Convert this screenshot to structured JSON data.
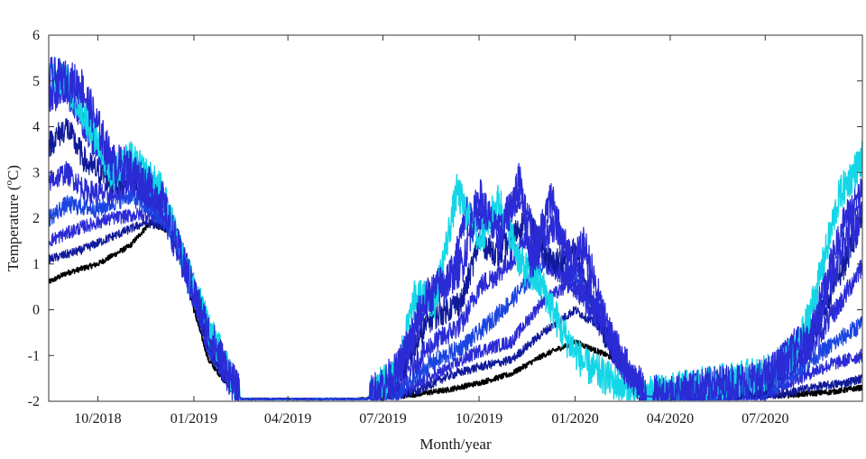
{
  "chart_data": {
    "type": "line",
    "title": "",
    "xlabel": "Month/year",
    "ylabel": "Temperature (°C)",
    "ylabel_main": "Temperature (",
    "ylabel_sup": "o",
    "ylabel_unit": "C)",
    "ylim": [
      -2,
      6
    ],
    "yticks": [
      -2,
      -1,
      0,
      1,
      2,
      3,
      4,
      5,
      6
    ],
    "xlim": [
      "2018-08-15",
      "2020-10-02"
    ],
    "xticks": [
      {
        "date": "2018-10-01",
        "label": "10/2018"
      },
      {
        "date": "2019-01-01",
        "label": "01/2019"
      },
      {
        "date": "2019-04-01",
        "label": "04/2019"
      },
      {
        "date": "2019-07-01",
        "label": "07/2019"
      },
      {
        "date": "2019-10-01",
        "label": "10/2019"
      },
      {
        "date": "2020-01-01",
        "label": "01/2020"
      },
      {
        "date": "2020-04-01",
        "label": "04/2020"
      },
      {
        "date": "2020-07-01",
        "label": "07/2020"
      }
    ],
    "grid": false,
    "legend": "none",
    "colors": {
      "black": "#000000",
      "cyan": "#14d6e6",
      "blue": "#2b2bd6",
      "blue_alt": "#1a45e0",
      "navy": "#101a9a",
      "white_band": "#ffffff"
    },
    "series": [
      {
        "color": "black",
        "noise": 0.06,
        "width": 1.6,
        "points": [
          [
            "2018-08-15",
            0.6
          ],
          [
            "2018-09-01",
            0.8
          ],
          [
            "2018-10-01",
            1.0
          ],
          [
            "2018-11-01",
            1.4
          ],
          [
            "2018-11-20",
            1.9
          ],
          [
            "2018-12-10",
            1.7
          ],
          [
            "2018-12-25",
            0.7
          ],
          [
            "2019-01-01",
            0.0
          ],
          [
            "2019-01-15",
            -1.1
          ],
          [
            "2019-02-01",
            -1.6
          ],
          [
            "2019-02-15",
            -1.95
          ],
          [
            "2019-06-01",
            -1.95
          ],
          [
            "2019-07-01",
            -1.92
          ],
          [
            "2019-08-01",
            -1.85
          ],
          [
            "2019-09-01",
            -1.75
          ],
          [
            "2019-10-01",
            -1.6
          ],
          [
            "2019-11-01",
            -1.4
          ],
          [
            "2019-12-01",
            -1.0
          ],
          [
            "2020-01-01",
            -0.7
          ],
          [
            "2020-02-01",
            -1.0
          ],
          [
            "2020-02-20",
            -1.3
          ],
          [
            "2020-03-01",
            -1.85
          ],
          [
            "2020-03-15",
            -1.9
          ],
          [
            "2020-07-01",
            -1.9
          ],
          [
            "2020-09-01",
            -1.8
          ],
          [
            "2020-10-02",
            -1.7
          ]
        ]
      },
      {
        "color": "navy",
        "noise": 0.1,
        "width": 1.2,
        "points": [
          [
            "2018-08-15",
            1.1
          ],
          [
            "2018-09-15",
            1.3
          ],
          [
            "2018-10-15",
            1.6
          ],
          [
            "2018-11-15",
            1.9
          ],
          [
            "2018-12-10",
            1.8
          ],
          [
            "2018-12-25",
            0.7
          ],
          [
            "2019-01-15",
            -1.0
          ],
          [
            "2019-02-15",
            -1.95
          ],
          [
            "2019-06-15",
            -1.95
          ],
          [
            "2019-08-01",
            -1.8
          ],
          [
            "2019-09-01",
            -1.45
          ],
          [
            "2019-10-01",
            -1.25
          ],
          [
            "2019-11-01",
            -1.1
          ],
          [
            "2019-12-01",
            -0.5
          ],
          [
            "2020-01-01",
            0.0
          ],
          [
            "2020-02-01",
            -0.5
          ],
          [
            "2020-02-20",
            -1.4
          ],
          [
            "2020-03-10",
            -1.9
          ],
          [
            "2020-07-15",
            -1.85
          ],
          [
            "2020-08-15",
            -1.7
          ],
          [
            "2020-09-15",
            -1.6
          ],
          [
            "2020-10-02",
            -1.5
          ]
        ]
      },
      {
        "color": "blue",
        "noise": 0.15,
        "width": 1.2,
        "points": [
          [
            "2018-08-15",
            1.5
          ],
          [
            "2018-09-15",
            1.8
          ],
          [
            "2018-10-15",
            2.0
          ],
          [
            "2018-11-15",
            2.1
          ],
          [
            "2018-12-10",
            1.9
          ],
          [
            "2018-12-25",
            0.8
          ],
          [
            "2019-01-15",
            -0.9
          ],
          [
            "2019-02-15",
            -1.95
          ],
          [
            "2019-06-15",
            -1.95
          ],
          [
            "2019-07-15",
            -1.85
          ],
          [
            "2019-08-15",
            -1.5
          ],
          [
            "2019-09-15",
            -1.1
          ],
          [
            "2019-10-01",
            -0.9
          ],
          [
            "2019-11-01",
            -0.7
          ],
          [
            "2019-12-01",
            0.2
          ],
          [
            "2020-01-01",
            0.6
          ],
          [
            "2020-02-01",
            -0.2
          ],
          [
            "2020-02-20",
            -1.3
          ],
          [
            "2020-03-10",
            -1.9
          ],
          [
            "2020-07-01",
            -1.85
          ],
          [
            "2020-08-01",
            -1.5
          ],
          [
            "2020-09-01",
            -1.2
          ],
          [
            "2020-10-02",
            -1.0
          ]
        ]
      },
      {
        "color": "blue_alt",
        "noise": 0.2,
        "width": 1.2,
        "points": [
          [
            "2018-08-15",
            2.0
          ],
          [
            "2018-09-01",
            2.3
          ],
          [
            "2018-10-01",
            2.2
          ],
          [
            "2018-11-01",
            2.5
          ],
          [
            "2018-12-01",
            2.0
          ],
          [
            "2018-12-25",
            0.9
          ],
          [
            "2019-01-15",
            -0.8
          ],
          [
            "2019-02-15",
            -1.95
          ],
          [
            "2019-06-15",
            -1.95
          ],
          [
            "2019-07-15",
            -1.8
          ],
          [
            "2019-08-15",
            -1.2
          ],
          [
            "2019-09-15",
            -0.8
          ],
          [
            "2019-10-01",
            -0.5
          ],
          [
            "2019-11-01",
            0.2
          ],
          [
            "2019-12-01",
            1.0
          ],
          [
            "2020-01-01",
            0.8
          ],
          [
            "2020-02-01",
            -0.4
          ],
          [
            "2020-02-20",
            -1.3
          ],
          [
            "2020-03-10",
            -1.9
          ],
          [
            "2020-07-01",
            -1.8
          ],
          [
            "2020-08-01",
            -1.3
          ],
          [
            "2020-09-01",
            -0.8
          ],
          [
            "2020-10-02",
            -0.3
          ]
        ]
      },
      {
        "color": "blue",
        "noise": 0.25,
        "width": 1.2,
        "points": [
          [
            "2018-08-15",
            2.8
          ],
          [
            "2018-09-01",
            3.0
          ],
          [
            "2018-09-20",
            2.6
          ],
          [
            "2018-10-15",
            2.5
          ],
          [
            "2018-11-01",
            2.8
          ],
          [
            "2018-12-01",
            2.2
          ],
          [
            "2018-12-25",
            1.0
          ],
          [
            "2019-01-15",
            -0.7
          ],
          [
            "2019-02-15",
            -1.95
          ],
          [
            "2019-06-15",
            -1.95
          ],
          [
            "2019-07-15",
            -1.6
          ],
          [
            "2019-08-15",
            -0.8
          ],
          [
            "2019-09-15",
            -0.3
          ],
          [
            "2019-10-01",
            0.5
          ],
          [
            "2019-10-20",
            0.8
          ],
          [
            "2019-11-15",
            1.5
          ],
          [
            "2019-12-15",
            0.8
          ],
          [
            "2020-01-01",
            0.5
          ],
          [
            "2020-02-01",
            -0.6
          ],
          [
            "2020-02-20",
            -1.4
          ],
          [
            "2020-03-10",
            -1.9
          ],
          [
            "2020-07-01",
            -1.7
          ],
          [
            "2020-08-15",
            -0.8
          ],
          [
            "2020-09-15",
            0.3
          ],
          [
            "2020-10-02",
            1.0
          ]
        ]
      },
      {
        "color": "navy",
        "noise": 0.3,
        "width": 1.2,
        "points": [
          [
            "2018-08-15",
            3.6
          ],
          [
            "2018-09-01",
            4.0
          ],
          [
            "2018-09-20",
            3.2
          ],
          [
            "2018-10-15",
            2.8
          ],
          [
            "2018-11-01",
            3.0
          ],
          [
            "2018-12-01",
            2.4
          ],
          [
            "2018-12-25",
            1.0
          ],
          [
            "2019-01-15",
            -0.6
          ],
          [
            "2019-02-15",
            -1.95
          ],
          [
            "2019-06-15",
            -1.95
          ],
          [
            "2019-07-15",
            -1.5
          ],
          [
            "2019-08-15",
            -0.2
          ],
          [
            "2019-09-15",
            0.2
          ],
          [
            "2019-10-01",
            1.5
          ],
          [
            "2019-10-20",
            1.2
          ],
          [
            "2019-11-15",
            2.0
          ],
          [
            "2019-12-10",
            1.0
          ],
          [
            "2020-01-01",
            1.3
          ],
          [
            "2020-02-01",
            -0.7
          ],
          [
            "2020-02-20",
            -1.4
          ],
          [
            "2020-03-10",
            -1.9
          ],
          [
            "2020-07-01",
            -1.6
          ],
          [
            "2020-08-15",
            -0.5
          ],
          [
            "2020-09-15",
            1.0
          ],
          [
            "2020-10-02",
            2.0
          ]
        ]
      },
      {
        "color": "blue",
        "noise": 0.35,
        "width": 1.2,
        "points": [
          [
            "2018-08-15",
            4.6
          ],
          [
            "2018-09-01",
            4.8
          ],
          [
            "2018-09-15",
            4.2
          ],
          [
            "2018-10-01",
            3.5
          ],
          [
            "2018-10-20",
            3.1
          ],
          [
            "2018-11-10",
            3.0
          ],
          [
            "2018-12-01",
            2.5
          ],
          [
            "2018-12-20",
            1.2
          ],
          [
            "2019-01-15",
            -0.5
          ],
          [
            "2019-02-15",
            -1.95
          ],
          [
            "2019-06-15",
            -1.95
          ],
          [
            "2019-07-15",
            -1.4
          ],
          [
            "2019-08-15",
            0.3
          ],
          [
            "2019-09-01",
            0.5
          ],
          [
            "2019-09-20",
            2.2
          ],
          [
            "2019-10-15",
            1.8
          ],
          [
            "2019-11-10",
            2.5
          ],
          [
            "2019-11-25",
            1.5
          ],
          [
            "2019-12-15",
            1.8
          ],
          [
            "2020-01-01",
            1.0
          ],
          [
            "2020-02-01",
            -0.6
          ],
          [
            "2020-02-20",
            -1.4
          ],
          [
            "2020-03-10",
            -1.9
          ],
          [
            "2020-07-01",
            -1.5
          ],
          [
            "2020-08-15",
            -0.3
          ],
          [
            "2020-09-15",
            2.0
          ],
          [
            "2020-10-02",
            2.6
          ]
        ]
      },
      {
        "color": "cyan",
        "noise": 0.4,
        "width": 1.4,
        "points": [
          [
            "2018-08-15",
            5.2
          ],
          [
            "2018-09-01",
            5.0
          ],
          [
            "2018-09-20",
            4.2
          ],
          [
            "2018-10-15",
            3.0
          ],
          [
            "2018-11-01",
            3.3
          ],
          [
            "2018-12-01",
            2.6
          ],
          [
            "2018-12-20",
            1.2
          ],
          [
            "2019-01-15",
            -0.4
          ],
          [
            "2019-02-01",
            -1.2
          ],
          [
            "2019-02-15",
            -1.95
          ],
          [
            "2019-06-15",
            -1.95
          ],
          [
            "2019-07-15",
            -1.3
          ],
          [
            "2019-08-01",
            0.3
          ],
          [
            "2019-08-20",
            0.2
          ],
          [
            "2019-09-10",
            2.6
          ],
          [
            "2019-10-01",
            1.5
          ],
          [
            "2019-10-20",
            2.4
          ],
          [
            "2019-11-10",
            1.0
          ],
          [
            "2019-12-01",
            0.5
          ],
          [
            "2019-12-20",
            -0.5
          ],
          [
            "2020-01-10",
            -1.2
          ],
          [
            "2020-02-01",
            -1.5
          ],
          [
            "2020-03-01",
            -1.9
          ],
          [
            "2020-07-01",
            -1.4
          ],
          [
            "2020-08-01",
            -0.9
          ],
          [
            "2020-08-20",
            0.5
          ],
          [
            "2020-09-10",
            2.5
          ],
          [
            "2020-10-02",
            3.3
          ]
        ]
      },
      {
        "color": "blue",
        "noise": 0.45,
        "width": 1.3,
        "points": [
          [
            "2018-08-15",
            5.1
          ],
          [
            "2018-09-01",
            5.0
          ],
          [
            "2018-09-15",
            4.9
          ],
          [
            "2018-10-01",
            4.0
          ],
          [
            "2018-10-15",
            3.2
          ],
          [
            "2018-11-01",
            3.1
          ],
          [
            "2018-12-01",
            2.4
          ],
          [
            "2018-12-20",
            1.1
          ],
          [
            "2019-01-15",
            -0.5
          ],
          [
            "2019-02-15",
            -1.95
          ],
          [
            "2019-06-15",
            -1.95
          ],
          [
            "2019-07-15",
            -1.35
          ],
          [
            "2019-08-10",
            0.2
          ],
          [
            "2019-09-15",
            1.0
          ],
          [
            "2019-10-01",
            2.5
          ],
          [
            "2019-10-20",
            1.5
          ],
          [
            "2019-11-10",
            2.9
          ],
          [
            "2019-11-20",
            1.0
          ],
          [
            "2019-12-10",
            2.5
          ],
          [
            "2019-12-25",
            0.8
          ],
          [
            "2020-01-10",
            1.4
          ],
          [
            "2020-02-01",
            -0.5
          ],
          [
            "2020-02-20",
            -1.3
          ],
          [
            "2020-03-10",
            -1.9
          ],
          [
            "2020-07-01",
            -1.5
          ],
          [
            "2020-08-15",
            -0.6
          ],
          [
            "2020-09-15",
            1.5
          ],
          [
            "2020-10-02",
            2.0
          ]
        ]
      }
    ]
  }
}
